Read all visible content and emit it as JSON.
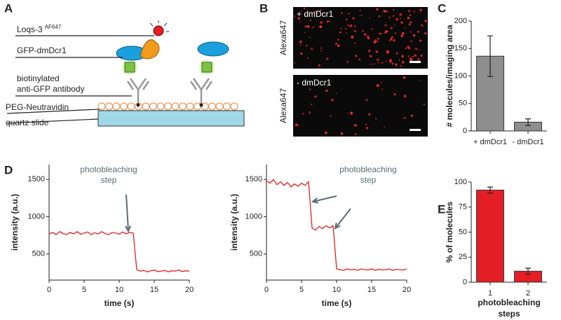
{
  "panel_labels": [
    "A",
    "B",
    "C",
    "D",
    "E"
  ],
  "diagram": {
    "dye_label": "Loqs-3",
    "dye_superscript": "AF647",
    "protein_label": "GFP-dmDcr1",
    "antibody_label_lines": [
      "biotinylated",
      "anti-GFP antibody"
    ],
    "surface_label": "PEG-Neutravidin",
    "slide_label": "quartz slide"
  },
  "micrographs": [
    {
      "condition": "+ dmDcr1",
      "channel": "Alexa647"
    },
    {
      "condition": "- dmDcr1",
      "channel": "Alexa647"
    }
  ],
  "chart_data": [
    {
      "type": "bar",
      "y_label": "# molecules/imaging area",
      "categories": [
        "+ dmDcr1",
        "- dmDcr1"
      ],
      "values": [
        136,
        16
      ],
      "errors": [
        37,
        6
      ],
      "color": "#8e8e8e",
      "ylim": [
        0,
        200
      ],
      "yticks": [
        0,
        50,
        100,
        150,
        200
      ]
    },
    {
      "type": "line",
      "y_label": "intensity (a.u.)",
      "x_label": "time (s)",
      "annotation_lines": [
        "photobleaching",
        "step"
      ],
      "color": "#e02020",
      "x": [
        0,
        0.5,
        1,
        1.5,
        2,
        2.5,
        3,
        3.5,
        4,
        4.5,
        5,
        5.5,
        6,
        6.5,
        7,
        7.5,
        8,
        8.5,
        9,
        9.5,
        10,
        10.5,
        11,
        11.5,
        12,
        12.5,
        13,
        13.5,
        14,
        14.5,
        15,
        15.5,
        16,
        16.5,
        17,
        17.5,
        18,
        18.5,
        19,
        19.5,
        20
      ],
      "values": [
        770,
        790,
        760,
        800,
        775,
        760,
        790,
        770,
        800,
        765,
        780,
        795,
        760,
        785,
        770,
        800,
        775,
        760,
        790,
        780,
        765,
        795,
        770,
        790,
        780,
        290,
        270,
        280,
        260,
        275,
        285,
        265,
        270,
        280,
        260,
        275,
        270,
        285,
        265,
        275,
        270
      ],
      "xlim": [
        0,
        20
      ],
      "xticks": [
        0,
        5,
        10,
        15,
        20
      ],
      "ylim": [
        150,
        1700
      ],
      "yticks": [
        500,
        1000,
        1500
      ]
    },
    {
      "type": "line",
      "y_label": "intensity (a.u.)",
      "x_label": "time (s)",
      "annotation_lines": [
        "photobleaching",
        "step"
      ],
      "color": "#e02020",
      "x": [
        0,
        0.5,
        1,
        1.5,
        2,
        2.5,
        3,
        3.5,
        4,
        4.5,
        5,
        5.5,
        6,
        6.5,
        7,
        7.5,
        8,
        8.5,
        9,
        9.5,
        10,
        10.5,
        11,
        11.5,
        12,
        12.5,
        13,
        13.5,
        14,
        14.5,
        15,
        15.5,
        16,
        16.5,
        17,
        17.5,
        18,
        18.5,
        19,
        19.5,
        20
      ],
      "values": [
        1480,
        1450,
        1500,
        1430,
        1470,
        1420,
        1460,
        1400,
        1440,
        1410,
        1450,
        1420,
        1470,
        850,
        820,
        870,
        840,
        880,
        850,
        880,
        300,
        290,
        280,
        300,
        285,
        295,
        280,
        300,
        290,
        285,
        300,
        280,
        295,
        285,
        290,
        300,
        280,
        295,
        290,
        285,
        300
      ],
      "xlim": [
        0,
        20
      ],
      "xticks": [
        0,
        5,
        10,
        15,
        20
      ],
      "ylim": [
        150,
        1700
      ],
      "yticks": [
        500,
        1000,
        1500
      ]
    },
    {
      "type": "bar",
      "y_label": "% of molecules",
      "x_label_lines": [
        "photobleaching",
        "steps"
      ],
      "categories": [
        "1",
        "2"
      ],
      "values": [
        92,
        11
      ],
      "errors": [
        3,
        3
      ],
      "color": "#e31e24",
      "ylim": [
        0,
        100
      ],
      "yticks": [
        0,
        25,
        50,
        75,
        100
      ]
    }
  ]
}
